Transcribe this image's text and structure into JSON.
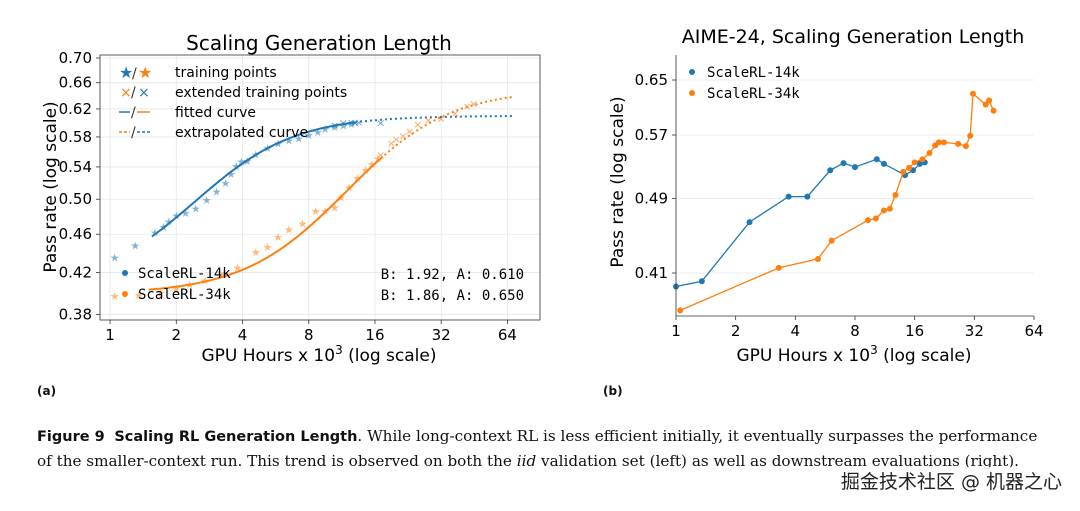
{
  "colors": {
    "blue": "#1f77b4",
    "orange": "#ff7f0e",
    "grid": "#e6e6e6"
  },
  "chart_data": [
    {
      "type": "scatter",
      "title": "Scaling Generation Length",
      "xlabel": "GPU Hours x 10",
      "xlabel_sup": "3",
      "xlabel_suffix": " (log scale)",
      "ylabel": "Pass rate (log scale)",
      "xscale": "log2",
      "yscale": "log",
      "xlim": [
        0.9,
        90
      ],
      "ylim": [
        0.375,
        0.705
      ],
      "xticks": [
        1,
        2,
        4,
        8,
        16,
        32,
        64
      ],
      "yticks": [
        0.38,
        0.42,
        0.46,
        0.5,
        0.54,
        0.58,
        0.62,
        0.66,
        0.7
      ],
      "style_legend": [
        {
          "label": "training points",
          "glyph": "★/★"
        },
        {
          "label": "extended training points",
          "glyph": "×/×"
        },
        {
          "label": "fitted curve",
          "glyph": "—/—"
        },
        {
          "label": "extrapolated curve",
          "glyph": "--/--"
        }
      ],
      "series": [
        {
          "name": "ScaleRL-14k",
          "color": "blue",
          "params": "B: 1.92, A: 0.610",
          "A": 0.61,
          "C": 2.7,
          "Bexp": 1.92,
          "y0": 0.405,
          "fit_range": [
            1.55,
            13
          ],
          "extrap_range": [
            13,
            68
          ],
          "points": [
            [
              1.05,
              0.435
            ],
            [
              1.3,
              0.448
            ],
            [
              1.6,
              0.462
            ],
            [
              1.75,
              0.468
            ],
            [
              1.85,
              0.474
            ],
            [
              2.0,
              0.481
            ],
            [
              2.2,
              0.484
            ],
            [
              2.45,
              0.489
            ],
            [
              2.75,
              0.499
            ],
            [
              3.05,
              0.509
            ],
            [
              3.35,
              0.52
            ],
            [
              3.55,
              0.531
            ],
            [
              3.75,
              0.541
            ],
            [
              3.95,
              0.547
            ],
            [
              4.2,
              0.548
            ],
            [
              4.6,
              0.556
            ],
            [
              5.2,
              0.565
            ],
            [
              5.8,
              0.571
            ],
            [
              6.5,
              0.575
            ],
            [
              7.2,
              0.578
            ],
            [
              8.0,
              0.583
            ],
            [
              8.8,
              0.587
            ],
            [
              9.5,
              0.591
            ],
            [
              10.5,
              0.594
            ],
            [
              11.5,
              0.596
            ],
            [
              12.5,
              0.598
            ]
          ],
          "extended_points": [
            [
              10.5,
              0.597
            ],
            [
              11.5,
              0.6
            ],
            [
              12.5,
              0.601
            ],
            [
              13.0,
              0.6
            ],
            [
              13.5,
              0.601
            ],
            [
              17.0,
              0.6
            ]
          ]
        },
        {
          "name": "ScaleRL-34k",
          "color": "orange",
          "params": "B: 1.86, A: 0.650",
          "A": 0.65,
          "C": 13.5,
          "Bexp": 1.86,
          "y0": 0.399,
          "fit_range": [
            1.5,
            17
          ],
          "extrap_range": [
            17,
            68
          ],
          "points": [
            [
              1.05,
              0.397
            ],
            [
              1.35,
              0.398
            ],
            [
              1.7,
              0.4
            ],
            [
              2.0,
              0.404
            ],
            [
              2.3,
              0.408
            ],
            [
              2.7,
              0.412
            ],
            [
              3.3,
              0.419
            ],
            [
              3.8,
              0.425
            ],
            [
              4.6,
              0.441
            ],
            [
              5.2,
              0.446
            ],
            [
              5.8,
              0.457
            ],
            [
              6.5,
              0.465
            ],
            [
              7.5,
              0.472
            ],
            [
              8.6,
              0.486
            ],
            [
              9.5,
              0.486
            ],
            [
              10.5,
              0.49
            ],
            [
              11.2,
              0.502
            ],
            [
              12.2,
              0.514
            ],
            [
              13.3,
              0.526
            ],
            [
              14.5,
              0.536
            ],
            [
              15.5,
              0.544
            ],
            [
              16.5,
              0.551
            ]
          ],
          "extended_points": [
            [
              17,
              0.556
            ],
            [
              19,
              0.572
            ],
            [
              20,
              0.577
            ],
            [
              21.5,
              0.582
            ],
            [
              23,
              0.588
            ],
            [
              25,
              0.598
            ],
            [
              28,
              0.604
            ],
            [
              32,
              0.606
            ],
            [
              37,
              0.614
            ],
            [
              42,
              0.624
            ],
            [
              45,
              0.628
            ]
          ]
        }
      ]
    },
    {
      "type": "line",
      "title": "AIME-24, Scaling Generation Length",
      "xlabel": "GPU Hours x 10",
      "xlabel_sup": "3",
      "xlabel_suffix": " (log scale)",
      "ylabel": "Pass rate (log scale)",
      "xscale": "log2",
      "yscale": "log",
      "xlim": [
        1.0,
        64
      ],
      "ylim": [
        0.37,
        0.69
      ],
      "xticks": [
        1,
        2,
        4,
        8,
        16,
        32,
        64
      ],
      "yticks": [
        0.41,
        0.49,
        0.57,
        0.65
      ],
      "series": [
        {
          "name": "ScaleRL-14k",
          "color": "blue",
          "points": [
            [
              1.0,
              0.397
            ],
            [
              1.35,
              0.402
            ],
            [
              2.35,
              0.463
            ],
            [
              3.7,
              0.492
            ],
            [
              4.6,
              0.492
            ],
            [
              6.0,
              0.524
            ],
            [
              7.0,
              0.533
            ],
            [
              8.0,
              0.528
            ],
            [
              10.3,
              0.538
            ],
            [
              11.2,
              0.532
            ],
            [
              14.3,
              0.518
            ],
            [
              15.7,
              0.524
            ],
            [
              17.0,
              0.532
            ],
            [
              18.0,
              0.534
            ]
          ]
        },
        {
          "name": "ScaleRL-34k",
          "color": "orange",
          "points": [
            [
              1.05,
              0.375
            ],
            [
              3.3,
              0.415
            ],
            [
              5.2,
              0.424
            ],
            [
              6.1,
              0.443
            ],
            [
              9.3,
              0.465
            ],
            [
              10.2,
              0.467
            ],
            [
              11.2,
              0.476
            ],
            [
              12.0,
              0.478
            ],
            [
              12.8,
              0.494
            ],
            [
              14.0,
              0.522
            ],
            [
              15.0,
              0.527
            ],
            [
              16.0,
              0.534
            ],
            [
              17.5,
              0.538
            ],
            [
              19.0,
              0.546
            ],
            [
              20.3,
              0.556
            ],
            [
              21.2,
              0.56
            ],
            [
              22.5,
              0.56
            ],
            [
              26.5,
              0.558
            ],
            [
              29.0,
              0.555
            ],
            [
              30.5,
              0.569
            ],
            [
              31.5,
              0.629
            ],
            [
              36.5,
              0.613
            ],
            [
              38.0,
              0.619
            ],
            [
              40.0,
              0.604
            ]
          ]
        }
      ]
    }
  ],
  "subfigure_labels": [
    "(a)",
    "(b)"
  ],
  "caption": {
    "figure_label": "Figure 9",
    "figure_title": "Scaling RL Generation Length",
    "text_before_iid": ". While long-context RL is less efficient initially, it eventually surpasses the performance of the smaller-context run. This trend is observed on both the ",
    "iid": "iid",
    "text_after_iid": " validation set (left) as well as downstream evaluations (right)."
  },
  "watermark": "掘金技术社区 @ 机器之心"
}
